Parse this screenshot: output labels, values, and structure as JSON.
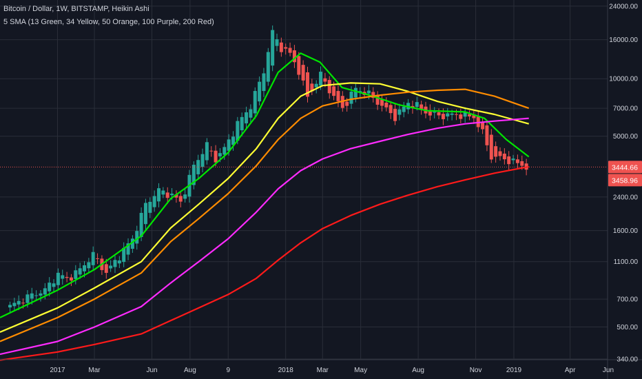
{
  "header": {
    "title": "Bitcoin / Dollar, 1W, BITSTAMP, Heikin Ashi",
    "indicator": "5 SMA (13 Green, 34 Yellow, 50 Orange, 100 Purple, 200 Red)"
  },
  "colors": {
    "background": "#131722",
    "grid": "#2a2e39",
    "axis_text": "#d1d4dc",
    "candle_up": "#26a69a",
    "candle_down": "#ef5350",
    "price_line": "#ef5350",
    "sma13": "#00e600",
    "sma34": "#ffff33",
    "sma50": "#ff8c00",
    "sma100": "#ff2bff",
    "sma200": "#ff1a1a"
  },
  "price_labels": {
    "current": "3444.66",
    "sma200": "3458.96"
  },
  "chart_data": {
    "type": "candlestick",
    "scale": "log",
    "ylim": [
      300,
      25000
    ],
    "y_ticks": [
      {
        "value": 24000,
        "label": "24000.00"
      },
      {
        "value": 16000,
        "label": "16000.00"
      },
      {
        "value": 10000,
        "label": "10000.00"
      },
      {
        "value": 7000,
        "label": "7000.00"
      },
      {
        "value": 5000,
        "label": "5000.00"
      },
      {
        "value": 2400,
        "label": "2400.00"
      },
      {
        "value": 1600,
        "label": "1600.00"
      },
      {
        "value": 1100,
        "label": "1100.00"
      },
      {
        "value": 700,
        "label": "700.00"
      },
      {
        "value": 500,
        "label": "500.00"
      },
      {
        "value": 340,
        "label": "340.00"
      }
    ],
    "x_ticks": [
      {
        "date": "2017-01-01",
        "label": "2017"
      },
      {
        "date": "2017-03-01",
        "label": "Mar"
      },
      {
        "date": "2017-06-01",
        "label": "Jun"
      },
      {
        "date": "2017-08-01",
        "label": "Aug"
      },
      {
        "date": "2017-10-01",
        "label": "9"
      },
      {
        "date": "2018-01-01",
        "label": "2018"
      },
      {
        "date": "2018-03-01",
        "label": "Mar"
      },
      {
        "date": "2018-05-01",
        "label": "May"
      },
      {
        "date": "2018-08-01",
        "label": "Aug"
      },
      {
        "date": "2018-11-01",
        "label": "Nov"
      },
      {
        "date": "2019-01-01",
        "label": "2019"
      },
      {
        "date": "2019-04-01",
        "label": "Apr"
      },
      {
        "date": "2019-06-01",
        "label": "Jun"
      }
    ],
    "xlim": [
      "2016-10-01",
      "2019-07-25"
    ],
    "weekly_closes": [
      [
        "2016-10-17",
        640
      ],
      [
        "2016-11-14",
        720
      ],
      [
        "2016-12-12",
        780
      ],
      [
        "2017-01-02",
        950
      ],
      [
        "2017-01-16",
        890
      ],
      [
        "2017-02-06",
        1000
      ],
      [
        "2017-02-27",
        1200
      ],
      [
        "2017-03-20",
        960
      ],
      [
        "2017-04-10",
        1180
      ],
      [
        "2017-05-01",
        1450
      ],
      [
        "2017-05-22",
        2200
      ],
      [
        "2017-06-12",
        2600
      ],
      [
        "2017-07-03",
        2450
      ],
      [
        "2017-07-17",
        2250
      ],
      [
        "2017-08-07",
        3500
      ],
      [
        "2017-08-28",
        4500
      ],
      [
        "2017-09-11",
        3800
      ],
      [
        "2017-09-25",
        4300
      ],
      [
        "2017-10-16",
        5800
      ],
      [
        "2017-11-06",
        7200
      ],
      [
        "2017-11-27",
        11000
      ],
      [
        "2017-12-11",
        17500
      ],
      [
        "2017-12-25",
        14500
      ],
      [
        "2018-01-08",
        13500
      ],
      [
        "2018-01-22",
        11000
      ],
      [
        "2018-02-05",
        8000
      ],
      [
        "2018-02-26",
        10500
      ],
      [
        "2018-03-19",
        8000
      ],
      [
        "2018-04-02",
        7000
      ],
      [
        "2018-04-23",
        8900
      ],
      [
        "2018-05-14",
        8300
      ],
      [
        "2018-06-04",
        7200
      ],
      [
        "2018-06-25",
        6300
      ],
      [
        "2018-07-16",
        7500
      ],
      [
        "2018-07-30",
        7200
      ],
      [
        "2018-08-20",
        6500
      ],
      [
        "2018-09-10",
        6400
      ],
      [
        "2018-10-01",
        6500
      ],
      [
        "2018-10-29",
        6300
      ],
      [
        "2018-11-12",
        5200
      ],
      [
        "2018-11-26",
        3900
      ],
      [
        "2018-12-17",
        3800
      ],
      [
        "2019-01-07",
        3600
      ],
      [
        "2019-01-21",
        3460
      ]
    ],
    "series": [
      {
        "name": "13 Green",
        "color": "#00e600",
        "points": [
          [
            "2016-10-01",
            560
          ],
          [
            "2017-01-01",
            780
          ],
          [
            "2017-03-01",
            1000
          ],
          [
            "2017-05-15",
            1500
          ],
          [
            "2017-07-01",
            2350
          ],
          [
            "2017-08-15",
            3000
          ],
          [
            "2017-10-01",
            4100
          ],
          [
            "2017-11-15",
            6400
          ],
          [
            "2017-12-20",
            10800
          ],
          [
            "2018-01-25",
            13600
          ],
          [
            "2018-02-25",
            12200
          ],
          [
            "2018-04-01",
            9000
          ],
          [
            "2018-05-15",
            8200
          ],
          [
            "2018-07-01",
            7300
          ],
          [
            "2018-08-15",
            6800
          ],
          [
            "2018-10-15",
            6700
          ],
          [
            "2018-11-15",
            6200
          ],
          [
            "2018-12-20",
            4800
          ],
          [
            "2019-01-25",
            3900
          ]
        ]
      },
      {
        "name": "34 Yellow",
        "color": "#ffff33",
        "points": [
          [
            "2016-10-01",
            470
          ],
          [
            "2017-01-01",
            630
          ],
          [
            "2017-03-01",
            800
          ],
          [
            "2017-05-15",
            1100
          ],
          [
            "2017-07-01",
            1650
          ],
          [
            "2017-08-15",
            2200
          ],
          [
            "2017-10-01",
            3000
          ],
          [
            "2017-11-15",
            4300
          ],
          [
            "2017-12-20",
            6200
          ],
          [
            "2018-01-25",
            8100
          ],
          [
            "2018-03-01",
            9200
          ],
          [
            "2018-04-15",
            9500
          ],
          [
            "2018-06-01",
            9400
          ],
          [
            "2018-07-15",
            8600
          ],
          [
            "2018-09-01",
            7600
          ],
          [
            "2018-10-15",
            7000
          ],
          [
            "2018-12-01",
            6500
          ],
          [
            "2019-01-25",
            5800
          ]
        ]
      },
      {
        "name": "50 Orange",
        "color": "#ff8c00",
        "points": [
          [
            "2016-10-01",
            420
          ],
          [
            "2017-01-01",
            560
          ],
          [
            "2017-03-01",
            700
          ],
          [
            "2017-05-15",
            960
          ],
          [
            "2017-07-01",
            1400
          ],
          [
            "2017-08-15",
            1850
          ],
          [
            "2017-10-01",
            2500
          ],
          [
            "2017-11-15",
            3500
          ],
          [
            "2017-12-20",
            4800
          ],
          [
            "2018-01-25",
            6200
          ],
          [
            "2018-03-01",
            7200
          ],
          [
            "2018-04-15",
            7800
          ],
          [
            "2018-06-01",
            8200
          ],
          [
            "2018-07-15",
            8500
          ],
          [
            "2018-09-01",
            8700
          ],
          [
            "2018-10-15",
            8800
          ],
          [
            "2018-12-01",
            8100
          ],
          [
            "2019-01-25",
            7000
          ]
        ]
      },
      {
        "name": "100 Purple",
        "color": "#ff2bff",
        "points": [
          [
            "2016-10-01",
            360
          ],
          [
            "2017-01-01",
            420
          ],
          [
            "2017-03-01",
            500
          ],
          [
            "2017-05-15",
            640
          ],
          [
            "2017-07-01",
            850
          ],
          [
            "2017-08-15",
            1100
          ],
          [
            "2017-10-01",
            1450
          ],
          [
            "2017-11-15",
            2000
          ],
          [
            "2017-12-20",
            2650
          ],
          [
            "2018-01-25",
            3300
          ],
          [
            "2018-03-01",
            3800
          ],
          [
            "2018-04-15",
            4300
          ],
          [
            "2018-06-01",
            4700
          ],
          [
            "2018-07-15",
            5100
          ],
          [
            "2018-09-01",
            5500
          ],
          [
            "2018-10-15",
            5800
          ],
          [
            "2018-12-01",
            6000
          ],
          [
            "2019-01-25",
            6200
          ]
        ]
      },
      {
        "name": "200 Red",
        "color": "#ff1a1a",
        "points": [
          [
            "2016-10-01",
            335
          ],
          [
            "2017-01-01",
            370
          ],
          [
            "2017-03-01",
            405
          ],
          [
            "2017-05-15",
            460
          ],
          [
            "2017-07-01",
            540
          ],
          [
            "2017-08-15",
            630
          ],
          [
            "2017-10-01",
            740
          ],
          [
            "2017-11-15",
            900
          ],
          [
            "2017-12-20",
            1120
          ],
          [
            "2018-01-25",
            1380
          ],
          [
            "2018-03-01",
            1640
          ],
          [
            "2018-04-15",
            1920
          ],
          [
            "2018-06-01",
            2200
          ],
          [
            "2018-07-15",
            2450
          ],
          [
            "2018-09-01",
            2720
          ],
          [
            "2018-10-15",
            2950
          ],
          [
            "2018-12-01",
            3200
          ],
          [
            "2019-01-25",
            3460
          ]
        ]
      }
    ]
  }
}
